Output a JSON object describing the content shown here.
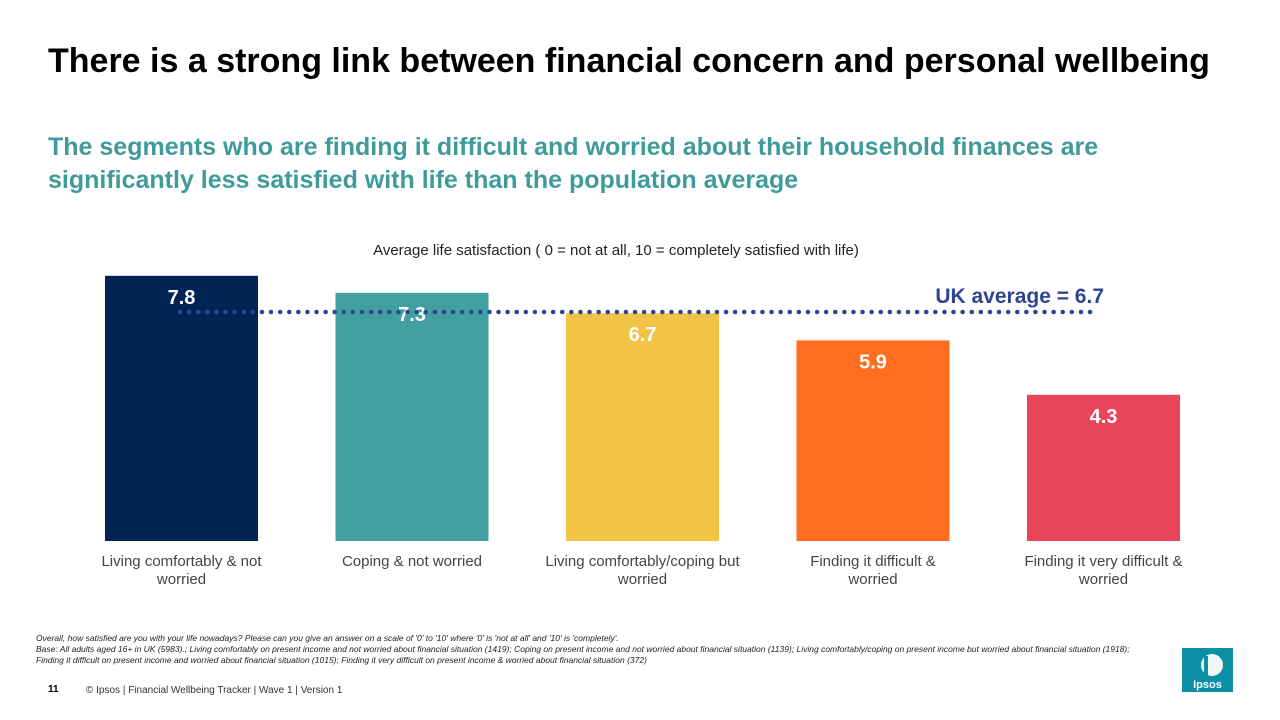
{
  "header": {
    "title": "There is a strong link between financial concern and personal wellbeing",
    "subtitle": "The segments who are finding it difficult and worried about their household finances are significantly less satisfied with life than the population average"
  },
  "chart_data": {
    "type": "bar",
    "title": "Average life satisfaction ( 0 = not at all, 10 = completely satisfied with life)",
    "categories": [
      "Living comfortably & not worried",
      "Coping & not worried",
      "Living comfortably/coping but worried",
      "Finding it difficult & worried",
      "Finding it very difficult & worried"
    ],
    "values": [
      7.8,
      7.3,
      6.7,
      5.9,
      4.3
    ],
    "data_labels": [
      "7.8",
      "7.3",
      "6.7",
      "5.9",
      "4.3"
    ],
    "colors": [
      "#002554",
      "#43a0a0",
      "#f1c347",
      "#fe6d20",
      "#e8455a"
    ],
    "ylim": [
      0,
      10
    ],
    "grid": false,
    "reference_line": {
      "label": "UK average = 6.7",
      "value": 6.7,
      "color": "#2e4591"
    }
  },
  "footnotes": {
    "question": "Overall, how satisfied are you with your life nowadays? Please can you give an answer on a scale of '0' to '10' where '0' is 'not at all' and '10' is 'completely'.",
    "base": "Base: All adults aged 16+ in UK (5983).; Living comfortably on present income and not worried about financial situation (1419); Coping on present income and not worried about financial situation (1139); Living comfortably/coping on present income but worried about financial situation (1918); Finding it difficult on present income and worried about financial situation (1015); Finding it very difficult on present income & worried about financial situation (372)"
  },
  "footer": {
    "page_number": "11",
    "text": "© Ipsos | Financial Wellbeing Tracker | Wave 1 | Version 1"
  },
  "logo": {
    "text": "Ipsos"
  }
}
